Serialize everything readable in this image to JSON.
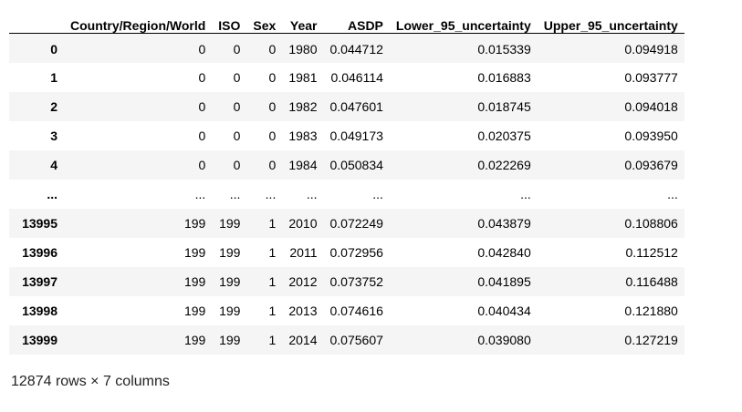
{
  "table": {
    "index_header": "",
    "columns": [
      "Country/Region/World",
      "ISO",
      "Sex",
      "Year",
      "ASDP",
      "Lower_95_uncertainty",
      "Upper_95_uncertainty"
    ],
    "rows": [
      {
        "index": "0",
        "cells": [
          "0",
          "0",
          "0",
          "1980",
          "0.044712",
          "0.015339",
          "0.094918"
        ]
      },
      {
        "index": "1",
        "cells": [
          "0",
          "0",
          "0",
          "1981",
          "0.046114",
          "0.016883",
          "0.093777"
        ]
      },
      {
        "index": "2",
        "cells": [
          "0",
          "0",
          "0",
          "1982",
          "0.047601",
          "0.018745",
          "0.094018"
        ]
      },
      {
        "index": "3",
        "cells": [
          "0",
          "0",
          "0",
          "1983",
          "0.049173",
          "0.020375",
          "0.093950"
        ]
      },
      {
        "index": "4",
        "cells": [
          "0",
          "0",
          "0",
          "1984",
          "0.050834",
          "0.022269",
          "0.093679"
        ]
      },
      {
        "index": "...",
        "cells": [
          "...",
          "...",
          "...",
          "...",
          "...",
          "...",
          "..."
        ]
      },
      {
        "index": "13995",
        "cells": [
          "199",
          "199",
          "1",
          "2010",
          "0.072249",
          "0.043879",
          "0.108806"
        ]
      },
      {
        "index": "13996",
        "cells": [
          "199",
          "199",
          "1",
          "2011",
          "0.072956",
          "0.042840",
          "0.112512"
        ]
      },
      {
        "index": "13997",
        "cells": [
          "199",
          "199",
          "1",
          "2012",
          "0.073752",
          "0.041895",
          "0.116488"
        ]
      },
      {
        "index": "13998",
        "cells": [
          "199",
          "199",
          "1",
          "2013",
          "0.074616",
          "0.040434",
          "0.121880"
        ]
      },
      {
        "index": "13999",
        "cells": [
          "199",
          "199",
          "1",
          "2014",
          "0.075607",
          "0.039080",
          "0.127219"
        ]
      }
    ]
  },
  "footer": {
    "shape_text": "12874 rows × 7 columns"
  }
}
